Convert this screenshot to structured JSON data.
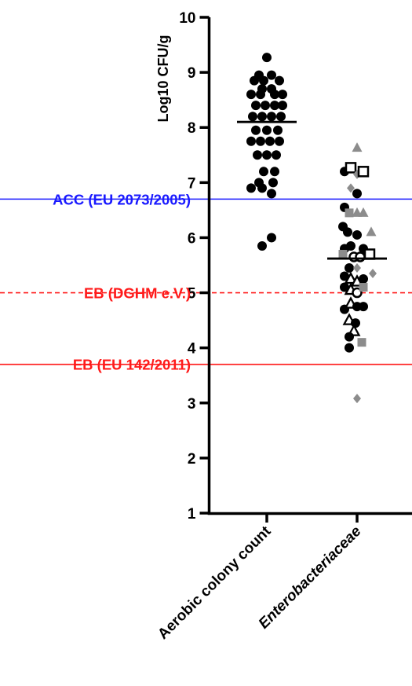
{
  "chart_data": {
    "type": "scatter",
    "ylabel": "Log10 CFU/g",
    "ylim": [
      1,
      10
    ],
    "yticks": [
      "1",
      "2",
      "3",
      "4",
      "5",
      "6",
      "7",
      "8",
      "9",
      "10"
    ],
    "categories": [
      "Aerobic colony count",
      "Enterobacteriaceae"
    ],
    "colors": {
      "acc_line": "#1a1aff",
      "eb_line": "#ff1a1a",
      "black": "#000000",
      "grey": "#8c8c8c"
    },
    "reference_lines": [
      {
        "label": "ACC (EU 2073/2005)",
        "y": 6.7,
        "color": "#1a1aff",
        "style": "solid"
      },
      {
        "label": "EB (DGHM e.V.)",
        "y": 5.0,
        "color": "#ff1a1a",
        "style": "dashed"
      },
      {
        "label": "EB (EU 142/2011)",
        "y": 3.7,
        "color": "#ff1a1a",
        "style": "solid"
      }
    ],
    "series": [
      {
        "category": "Aerobic colony count",
        "marker": "filled-circle",
        "median": 8.1,
        "points": [
          {
            "dx": 0.0,
            "y": 9.27
          },
          {
            "dx": -0.5,
            "y": 8.95
          },
          {
            "dx": 0.3,
            "y": 8.95
          },
          {
            "dx": -0.8,
            "y": 8.85
          },
          {
            "dx": -0.2,
            "y": 8.85
          },
          {
            "dx": 0.8,
            "y": 8.85
          },
          {
            "dx": -0.3,
            "y": 8.7
          },
          {
            "dx": 0.3,
            "y": 8.7
          },
          {
            "dx": -1.0,
            "y": 8.6
          },
          {
            "dx": -0.4,
            "y": 8.6
          },
          {
            "dx": 0.5,
            "y": 8.6
          },
          {
            "dx": 1.0,
            "y": 8.6
          },
          {
            "dx": -0.7,
            "y": 8.4
          },
          {
            "dx": -0.1,
            "y": 8.4
          },
          {
            "dx": 0.5,
            "y": 8.4
          },
          {
            "dx": 1.0,
            "y": 8.4
          },
          {
            "dx": -0.9,
            "y": 8.2
          },
          {
            "dx": -0.3,
            "y": 8.2
          },
          {
            "dx": 0.3,
            "y": 8.2
          },
          {
            "dx": 0.9,
            "y": 8.2
          },
          {
            "dx": -0.7,
            "y": 7.95
          },
          {
            "dx": 0.0,
            "y": 7.95
          },
          {
            "dx": 0.7,
            "y": 7.95
          },
          {
            "dx": -1.0,
            "y": 7.75
          },
          {
            "dx": -0.4,
            "y": 7.75
          },
          {
            "dx": 0.2,
            "y": 7.75
          },
          {
            "dx": 0.8,
            "y": 7.75
          },
          {
            "dx": -0.6,
            "y": 7.5
          },
          {
            "dx": 0.0,
            "y": 7.5
          },
          {
            "dx": 0.6,
            "y": 7.5
          },
          {
            "dx": -0.2,
            "y": 7.2
          },
          {
            "dx": 0.5,
            "y": 7.2
          },
          {
            "dx": -0.5,
            "y": 7.0
          },
          {
            "dx": 0.4,
            "y": 7.0
          },
          {
            "dx": -1.0,
            "y": 6.9
          },
          {
            "dx": -0.3,
            "y": 6.9
          },
          {
            "dx": 0.3,
            "y": 6.8
          },
          {
            "dx": 0.3,
            "y": 6.0
          },
          {
            "dx": -0.3,
            "y": 5.85
          }
        ]
      },
      {
        "category": "Enterobacteriaceae",
        "median": 5.62,
        "points": [
          {
            "dx": 0.0,
            "y": 7.63,
            "marker": "grey-triangle"
          },
          {
            "dx": -0.8,
            "y": 7.2,
            "marker": "filled-circle"
          },
          {
            "dx": -0.4,
            "y": 7.27,
            "marker": "open-square"
          },
          {
            "dx": 0.0,
            "y": 7.15,
            "marker": "grey-diamond"
          },
          {
            "dx": 0.4,
            "y": 7.2,
            "marker": "open-square"
          },
          {
            "dx": 0.0,
            "y": 6.8,
            "marker": "filled-circle"
          },
          {
            "dx": -0.4,
            "y": 6.9,
            "marker": "grey-diamond"
          },
          {
            "dx": -0.8,
            "y": 6.55,
            "marker": "filled-circle"
          },
          {
            "dx": 0.0,
            "y": 6.45,
            "marker": "grey-triangle"
          },
          {
            "dx": 0.4,
            "y": 6.45,
            "marker": "grey-triangle"
          },
          {
            "dx": -0.9,
            "y": 6.2,
            "marker": "filled-circle"
          },
          {
            "dx": -0.5,
            "y": 6.45,
            "marker": "grey-square"
          },
          {
            "dx": -0.6,
            "y": 6.1,
            "marker": "filled-circle"
          },
          {
            "dx": 0.0,
            "y": 6.05,
            "marker": "filled-circle"
          },
          {
            "dx": 0.9,
            "y": 6.1,
            "marker": "grey-triangle"
          },
          {
            "dx": -0.8,
            "y": 5.8,
            "marker": "filled-circle"
          },
          {
            "dx": -0.4,
            "y": 5.85,
            "marker": "filled-circle"
          },
          {
            "dx": 0.4,
            "y": 5.8,
            "marker": "filled-circle"
          },
          {
            "dx": -0.9,
            "y": 5.7,
            "marker": "grey-square"
          },
          {
            "dx": -0.5,
            "y": 5.45,
            "marker": "filled-circle"
          },
          {
            "dx": 0.0,
            "y": 5.45,
            "marker": "grey-diamond"
          },
          {
            "dx": -0.2,
            "y": 5.65,
            "marker": "open-circle"
          },
          {
            "dx": 0.2,
            "y": 5.65,
            "marker": "open-circle"
          },
          {
            "dx": 0.8,
            "y": 5.7,
            "marker": "open-square"
          },
          {
            "dx": 1.0,
            "y": 5.35,
            "marker": "grey-diamond"
          },
          {
            "dx": -0.8,
            "y": 5.3,
            "marker": "filled-circle"
          },
          {
            "dx": -0.4,
            "y": 5.25,
            "marker": "open-triangle"
          },
          {
            "dx": 0.0,
            "y": 5.2,
            "marker": "open-triangle"
          },
          {
            "dx": 0.4,
            "y": 5.25,
            "marker": "filled-circle"
          },
          {
            "dx": -0.8,
            "y": 5.1,
            "marker": "filled-circle"
          },
          {
            "dx": -0.4,
            "y": 5.05,
            "marker": "open-triangle"
          },
          {
            "dx": 0.0,
            "y": 5.0,
            "marker": "open-circle"
          },
          {
            "dx": 0.4,
            "y": 5.1,
            "marker": "grey-square"
          },
          {
            "dx": -0.8,
            "y": 4.7,
            "marker": "filled-circle"
          },
          {
            "dx": -0.4,
            "y": 4.8,
            "marker": "open-triangle"
          },
          {
            "dx": 0.0,
            "y": 4.75,
            "marker": "filled-circle"
          },
          {
            "dx": 0.4,
            "y": 4.75,
            "marker": "filled-circle"
          },
          {
            "dx": -0.5,
            "y": 4.5,
            "marker": "open-triangle"
          },
          {
            "dx": -0.1,
            "y": 4.45,
            "marker": "filled-circle"
          },
          {
            "dx": -0.2,
            "y": 4.3,
            "marker": "open-triangle"
          },
          {
            "dx": -0.5,
            "y": 4.2,
            "marker": "filled-circle"
          },
          {
            "dx": 0.3,
            "y": 4.1,
            "marker": "grey-square"
          },
          {
            "dx": -0.5,
            "y": 4.0,
            "marker": "filled-circle"
          },
          {
            "dx": 0.0,
            "y": 3.08,
            "marker": "grey-diamond"
          }
        ]
      }
    ]
  }
}
